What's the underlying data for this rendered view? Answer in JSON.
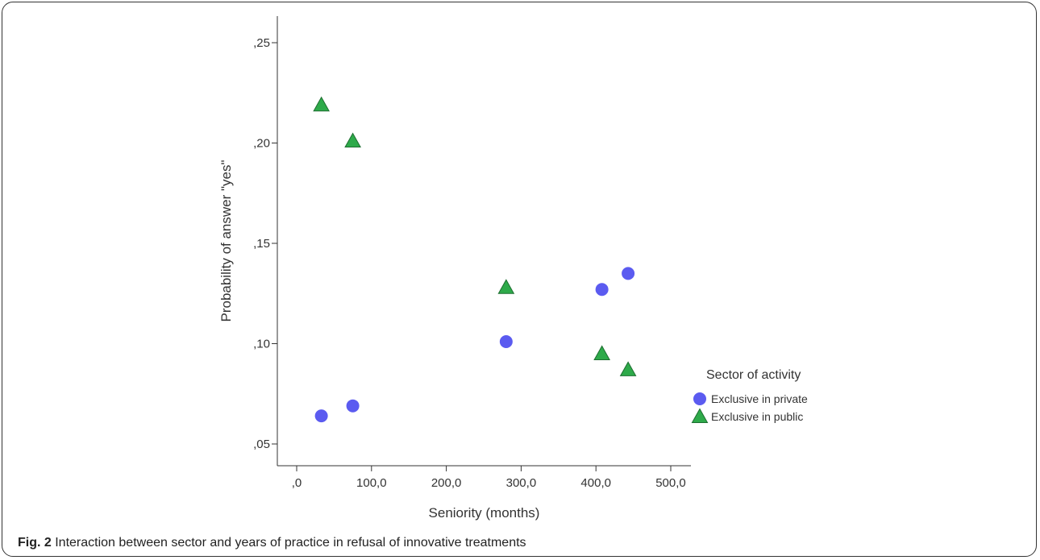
{
  "caption": {
    "label": "Fig. 2",
    "text": "Interaction between sector and years of practice in refusal of innovative treatments"
  },
  "chart_data": {
    "type": "scatter",
    "title": "",
    "xlabel": "Seniority (months)",
    "ylabel": "Probability of answer \"yes\"",
    "xlim": [
      -10,
      530
    ],
    "ylim": [
      0.04,
      0.26
    ],
    "x_ticks": [
      0,
      100,
      200,
      300,
      400,
      500
    ],
    "x_tick_labels": [
      ",0",
      "100,0",
      "200,0",
      "300,0",
      "400,0",
      "500,0"
    ],
    "y_ticks": [
      0.05,
      0.1,
      0.15,
      0.2,
      0.25
    ],
    "y_tick_labels": [
      ",05",
      ",10",
      ",15",
      ",20",
      ",25"
    ],
    "grid": false,
    "legend": {
      "title": "Sector of activity",
      "placement": "right"
    },
    "series": [
      {
        "name": "Exclusive in private",
        "marker": "circle",
        "color": "#5b5bf0",
        "points": [
          {
            "x": 33,
            "y": 0.064
          },
          {
            "x": 75,
            "y": 0.069
          },
          {
            "x": 280,
            "y": 0.101
          },
          {
            "x": 408,
            "y": 0.127
          },
          {
            "x": 443,
            "y": 0.135
          }
        ]
      },
      {
        "name": "Exclusive in public",
        "marker": "triangle",
        "color": "#2eaa4a",
        "points": [
          {
            "x": 33,
            "y": 0.219
          },
          {
            "x": 75,
            "y": 0.201
          },
          {
            "x": 280,
            "y": 0.128
          },
          {
            "x": 408,
            "y": 0.095
          },
          {
            "x": 443,
            "y": 0.087
          }
        ]
      }
    ]
  }
}
